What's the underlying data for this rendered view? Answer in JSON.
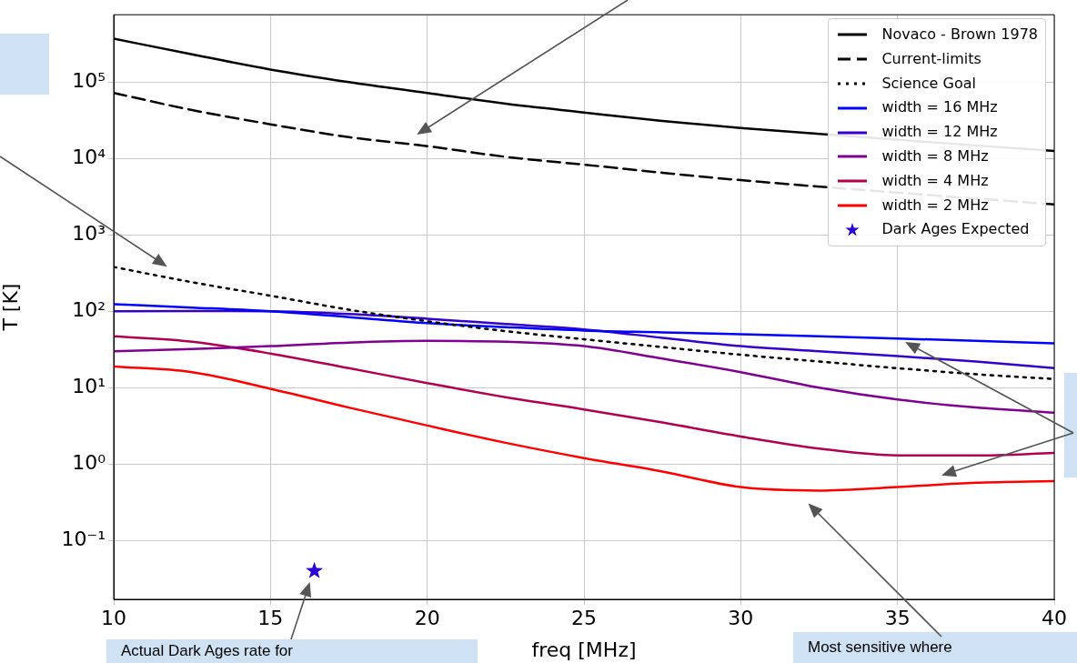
{
  "chart_data": {
    "type": "line",
    "xlabel": "freq [MHz]",
    "ylabel": "T [K]",
    "x": [
      10,
      12.5,
      15,
      17.5,
      20,
      22.5,
      25,
      27.5,
      30,
      32.5,
      35,
      37.5,
      40
    ],
    "series": [
      {
        "name": "Novaco - Brown 1978",
        "color": "#000000",
        "line_style": "solid",
        "values": [
          370000,
          230000,
          146000,
          100000,
          72000,
          52000,
          40000,
          31000,
          25000,
          null,
          null,
          null,
          12500
        ]
      },
      {
        "name": "Current-limits",
        "color": "#000000",
        "line_style": "dashed",
        "values": [
          72000,
          43000,
          28000,
          19000,
          14500,
          10500,
          8300,
          6500,
          5200,
          null,
          null,
          null,
          2500
        ]
      },
      {
        "name": "Science Goal",
        "color": "#000000",
        "line_style": "dotted",
        "values": [
          380,
          240,
          160,
          105,
          74,
          55,
          43,
          34,
          27,
          22,
          18,
          15,
          13
        ]
      },
      {
        "name": "width = 16 MHz",
        "color": "#0000ff",
        "line_style": "solid",
        "values": [
          124,
          112,
          100,
          84,
          70,
          62,
          56,
          53,
          50,
          47,
          44,
          41,
          38
        ]
      },
      {
        "name": "width = 12 MHz",
        "color": "#3300cc",
        "line_style": "solid",
        "values": [
          100,
          101,
          100,
          92,
          80,
          68,
          58,
          45,
          35,
          30,
          26,
          22,
          18
        ]
      },
      {
        "name": "width = 8 MHz",
        "color": "#800090",
        "line_style": "solid",
        "values": [
          30,
          32,
          35,
          39,
          41,
          40,
          35,
          24,
          16,
          10,
          7,
          5.5,
          4.7
        ]
      },
      {
        "name": "width = 4 MHz",
        "color": "#b00050",
        "line_style": "solid",
        "values": [
          47,
          40,
          28,
          18,
          11.5,
          7.5,
          5.2,
          3.5,
          2.3,
          1.6,
          1.3,
          1.3,
          1.4
        ]
      },
      {
        "name": "width = 2 MHz",
        "color": "#ff0000",
        "line_style": "solid",
        "values": [
          19,
          16,
          9.7,
          5.5,
          3.2,
          1.9,
          1.2,
          0.8,
          0.5,
          0.45,
          0.5,
          0.57,
          0.6
        ]
      },
      {
        "name": "Dark Ages Expected",
        "type": "scatter",
        "marker": "star",
        "color": "#2b00d6",
        "x": [
          16.4
        ],
        "values": [
          0.04
        ]
      }
    ],
    "xlim": [
      10,
      40
    ],
    "xticks": [
      10,
      15,
      20,
      25,
      30,
      35,
      40
    ],
    "ylim": [
      0.017,
      760000
    ],
    "log": "y",
    "yticks": [
      {
        "value": 0.1,
        "label": "10⁻¹"
      },
      {
        "value": 1,
        "label": "10⁰"
      },
      {
        "value": 10,
        "label": "10¹"
      },
      {
        "value": 100,
        "label": "10²"
      },
      {
        "value": 1000,
        "label": "10³"
      },
      {
        "value": 10000,
        "label": "10⁴"
      },
      {
        "value": 100000,
        "label": "10⁵"
      }
    ],
    "grid": true,
    "legend": "top right",
    "marker": "none",
    "annotations": [
      "Actual Dark Ages rate for",
      "Most sensitive where"
    ]
  }
}
